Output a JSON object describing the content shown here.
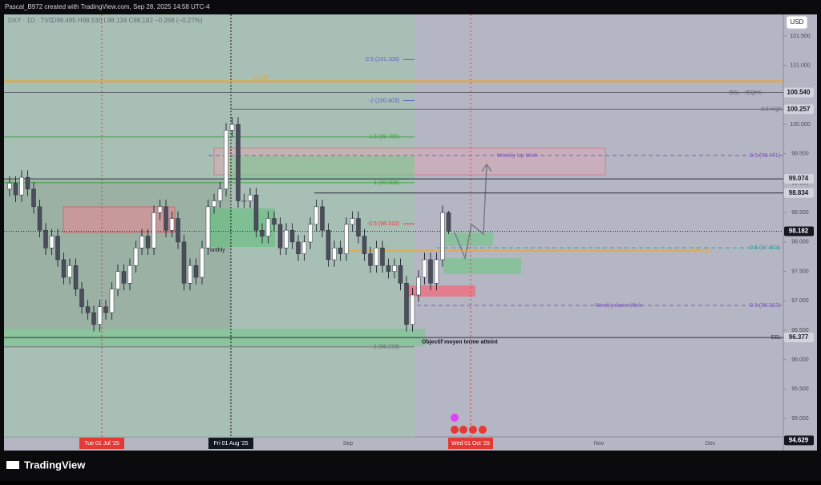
{
  "header": {
    "credit": "Pascal_B972 created with TradingView.com, Sep 28, 2025 14:58 UTC-4",
    "symbol": "DXY · 1D · TVC",
    "ohlc": "O98.495 H98.530 L98.134 C98.182 −0.268 (−0.27%)",
    "currency": "USD"
  },
  "chart_data": {
    "type": "candlestick",
    "open": [
      98.9,
      99.0,
      98.8,
      99.1,
      98.9,
      98.6,
      98.2,
      97.9,
      98.1,
      97.7,
      97.4,
      97.6,
      97.2,
      96.9,
      96.8,
      96.6,
      96.9,
      96.8,
      97.2,
      97.5,
      97.3,
      97.6,
      97.9,
      98.1,
      97.9,
      98.5,
      98.6,
      98.2,
      98.4,
      98.0,
      97.3,
      97.6,
      97.4,
      97.9,
      98.6,
      98.7,
      98.9,
      99.9,
      100.0,
      98.7,
      98.7,
      98.8,
      98.2,
      98.1,
      98.4,
      98.3,
      97.9,
      98.2,
      98.0,
      97.8,
      98.0,
      98.3,
      98.6,
      98.2,
      97.7,
      97.9,
      97.8,
      98.3,
      98.4,
      98.1,
      97.8,
      97.6,
      97.9,
      97.6,
      97.5,
      97.6,
      97.3,
      96.6,
      97.1,
      97.4,
      97.7,
      97.3,
      97.7,
      98.5
    ],
    "high": [
      99.12,
      99.12,
      99.22,
      99.22,
      99.02,
      98.72,
      98.32,
      98.22,
      98.22,
      97.82,
      97.72,
      97.72,
      97.32,
      97.02,
      96.92,
      97.02,
      97.02,
      97.32,
      97.62,
      97.62,
      97.72,
      98.02,
      98.22,
      98.22,
      98.62,
      98.72,
      98.72,
      98.52,
      98.52,
      98.12,
      97.72,
      97.72,
      98.02,
      98.72,
      98.82,
      99.02,
      100.02,
      100.12,
      100.12,
      98.82,
      98.92,
      98.92,
      98.32,
      98.52,
      98.52,
      98.42,
      98.32,
      98.32,
      98.12,
      98.12,
      98.42,
      98.72,
      98.72,
      98.32,
      98.02,
      98.02,
      98.42,
      98.52,
      98.52,
      98.22,
      97.92,
      98.02,
      98.02,
      97.72,
      97.72,
      97.72,
      97.42,
      97.22,
      97.52,
      97.82,
      97.82,
      97.82,
      98.62,
      98.53
    ],
    "low": [
      98.78,
      98.68,
      98.68,
      98.78,
      98.48,
      98.08,
      97.78,
      97.78,
      97.58,
      97.28,
      97.28,
      97.08,
      96.78,
      96.68,
      96.48,
      96.48,
      96.68,
      96.68,
      97.08,
      97.18,
      97.18,
      97.48,
      97.78,
      97.78,
      97.78,
      98.38,
      98.08,
      98.08,
      97.88,
      97.18,
      97.18,
      97.28,
      97.28,
      97.78,
      98.48,
      98.58,
      98.78,
      99.78,
      98.58,
      98.58,
      98.58,
      98.08,
      97.98,
      97.98,
      98.18,
      97.78,
      97.78,
      97.88,
      97.68,
      97.68,
      97.88,
      98.18,
      98.08,
      97.58,
      97.58,
      97.68,
      97.68,
      98.18,
      97.98,
      97.68,
      97.48,
      97.48,
      97.48,
      97.38,
      97.38,
      97.18,
      96.48,
      96.48,
      96.98,
      97.28,
      97.18,
      97.18,
      97.58,
      98.134
    ],
    "close": [
      99.0,
      98.8,
      99.1,
      98.9,
      98.6,
      98.2,
      97.9,
      98.1,
      97.7,
      97.4,
      97.6,
      97.2,
      96.9,
      96.8,
      96.6,
      96.9,
      96.8,
      97.2,
      97.5,
      97.3,
      97.6,
      97.9,
      98.1,
      97.9,
      98.5,
      98.6,
      98.2,
      98.4,
      98.0,
      97.3,
      97.6,
      97.4,
      97.9,
      98.6,
      98.7,
      98.9,
      99.9,
      100.0,
      98.7,
      98.7,
      98.8,
      98.2,
      98.1,
      98.4,
      98.3,
      97.9,
      98.2,
      98.0,
      97.8,
      98.0,
      98.3,
      98.6,
      98.2,
      97.7,
      97.9,
      97.8,
      98.3,
      98.4,
      98.1,
      97.8,
      97.6,
      97.9,
      97.6,
      97.5,
      97.6,
      97.3,
      96.6,
      97.1,
      97.4,
      97.7,
      97.3,
      97.7,
      98.5,
      98.182
    ],
    "up_color": "#ffffff",
    "down_color": "#4a4e5a",
    "ylim": [
      94.688,
      101.868
    ],
    "yticks": [
      {
        "value": 95,
        "label": "95.000"
      },
      {
        "value": 95.5,
        "label": "95.500"
      },
      {
        "value": 96,
        "label": "96.000"
      },
      {
        "value": 96.5,
        "label": "96.500"
      },
      {
        "value": 97,
        "label": "97.000"
      },
      {
        "value": 97.5,
        "label": "97.500"
      },
      {
        "value": 98,
        "label": "98.000"
      },
      {
        "value": 98.5,
        "label": "98.500"
      },
      {
        "value": 99,
        "label": "99.000"
      },
      {
        "value": 99.5,
        "label": "99.500"
      },
      {
        "value": 100,
        "label": "100.000"
      },
      {
        "value": 100.5,
        "label": "100.500"
      },
      {
        "value": 101,
        "label": "101.000"
      },
      {
        "value": 101.5,
        "label": "101.500"
      }
    ],
    "x_labels": [
      "Tue 01 Jul '25",
      "Fri 01 Aug '25",
      "Sep",
      "Wed 01 Oct '25",
      "Nov",
      "Dec"
    ],
    "price_tags": [
      {
        "value": 100.54,
        "label": "100.540",
        "color": "#d1d4dc"
      },
      {
        "value": 100.257,
        "label": "100.257",
        "color": "#d1d4dc"
      },
      {
        "value": 99.074,
        "label": "99.074",
        "color": "#d1d4dc"
      },
      {
        "value": 98.834,
        "label": "98.834",
        "color": "#d1d4dc"
      },
      {
        "value": 98.182,
        "label": "98.182",
        "color": "#131722"
      },
      {
        "value": 96.377,
        "label": "96.377",
        "color": "#d1d4dc"
      },
      {
        "value": 94.629,
        "label": "94.629",
        "color": "#131722"
      }
    ],
    "levels": [
      {
        "label": "D -OB",
        "value": 100.73,
        "color": "#f7a21b"
      },
      {
        "label": "BSL - rEQHs",
        "value": 100.54,
        "color": "#5d606b"
      },
      {
        "label": "3rd High",
        "value": 100.257,
        "color": "#6a6d78"
      },
      {
        "label": "-2.5 (101.100)",
        "value": 101.1,
        "color": "#5b5fc7"
      },
      {
        "label": "-2 (100.403)",
        "value": 100.403,
        "color": "#5b5fc7"
      },
      {
        "label": "1.5 (99.785)",
        "value": 99.785,
        "color": "#43a047"
      },
      {
        "label": "-1 (99.008)",
        "value": 99.008,
        "color": "#43a047"
      },
      {
        "label": "-0.5 (98.310)",
        "value": 98.31,
        "color": "#f23645"
      },
      {
        "label": "1 (96.218)",
        "value": 96.218,
        "color": "#6a6d78"
      },
      {
        "label": "0.5 (99.471)",
        "value": 99.471,
        "color": "#7e57c2"
      },
      {
        "label": "0.5 (97.902)",
        "value": 97.902,
        "color": "#26a69a"
      },
      {
        "label": "0.5 (96.922)",
        "value": 96.922,
        "color": "#7e57c2"
      },
      {
        "label": "W+OB",
        "value": 97.85,
        "color": "#f7a21b"
      },
      {
        "label": "SSL",
        "value": 96.377,
        "color": "#2a2e39"
      }
    ],
    "notes": [
      {
        "text": "Weekly Up Wick",
        "value": 99.471
      },
      {
        "text": "Weekly down Wick",
        "value": 96.922
      },
      {
        "text": "Objectif moyen terme atteint",
        "value": 96.3
      },
      {
        "text": "onthly",
        "value": 97.86
      }
    ]
  },
  "footer": {
    "brand": "TradingView"
  }
}
